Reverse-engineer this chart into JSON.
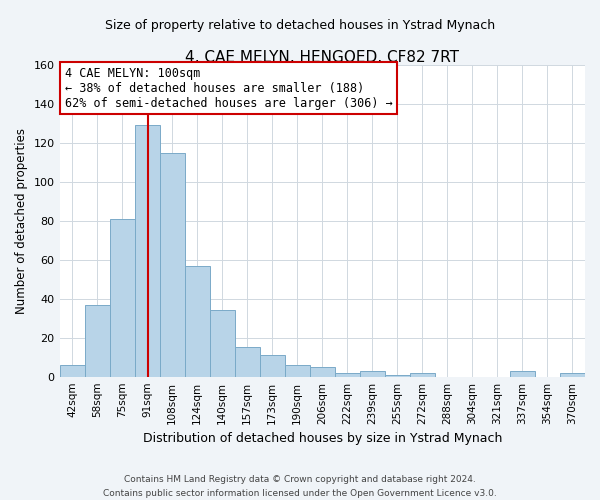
{
  "title": "4, CAE MELYN, HENGOED, CF82 7RT",
  "subtitle": "Size of property relative to detached houses in Ystrad Mynach",
  "xlabel": "Distribution of detached houses by size in Ystrad Mynach",
  "ylabel": "Number of detached properties",
  "bar_labels": [
    "42sqm",
    "58sqm",
    "75sqm",
    "91sqm",
    "108sqm",
    "124sqm",
    "140sqm",
    "157sqm",
    "173sqm",
    "190sqm",
    "206sqm",
    "222sqm",
    "239sqm",
    "255sqm",
    "272sqm",
    "288sqm",
    "304sqm",
    "321sqm",
    "337sqm",
    "354sqm",
    "370sqm"
  ],
  "bar_values": [
    6,
    37,
    81,
    129,
    115,
    57,
    34,
    15,
    11,
    6,
    5,
    2,
    3,
    1,
    2,
    0,
    0,
    0,
    3,
    0,
    2
  ],
  "bar_color": "#b8d4e8",
  "bar_edge_color": "#7aaac8",
  "vline_x_bar_idx": 3,
  "vline_color": "#cc0000",
  "annotation_title": "4 CAE MELYN: 100sqm",
  "annotation_line1": "← 38% of detached houses are smaller (188)",
  "annotation_line2": "62% of semi-detached houses are larger (306) →",
  "annotation_box_color": "#ffffff",
  "annotation_box_edge": "#cc0000",
  "ylim": [
    0,
    160
  ],
  "yticks": [
    0,
    20,
    40,
    60,
    80,
    100,
    120,
    140,
    160
  ],
  "footer_line1": "Contains HM Land Registry data © Crown copyright and database right 2024.",
  "footer_line2": "Contains public sector information licensed under the Open Government Licence v3.0.",
  "bg_color": "#f0f4f8",
  "plot_bg_color": "#ffffff",
  "grid_color": "#d0d8e0"
}
